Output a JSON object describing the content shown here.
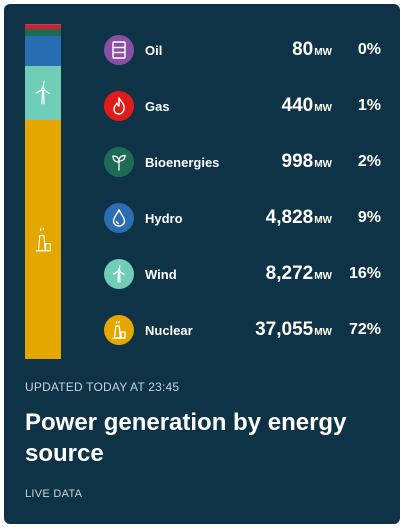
{
  "colors": {
    "card_bg": "#0e3346",
    "oil": "#8a4fa3",
    "gas": "#e01b1b",
    "bioenergies": "#1e6b55",
    "hydro": "#2a6db1",
    "wind": "#6fcdb8",
    "nuclear": "#e3a700"
  },
  "sources": [
    {
      "name": "Oil",
      "value": "80",
      "unit": "MW",
      "pct": "0%",
      "icon": "oil-barrel-icon",
      "color": "#8a4fa3"
    },
    {
      "name": "Gas",
      "value": "440",
      "unit": "MW",
      "pct": "1%",
      "icon": "flame-icon",
      "color": "#e01b1b"
    },
    {
      "name": "Bioenergies",
      "value": "998",
      "unit": "MW",
      "pct": "2%",
      "icon": "leaf-sprout-icon",
      "color": "#1e6b55"
    },
    {
      "name": "Hydro",
      "value": "4,828",
      "unit": "MW",
      "pct": "9%",
      "icon": "water-drop-icon",
      "color": "#2a6db1"
    },
    {
      "name": "Wind",
      "value": "8,272",
      "unit": "MW",
      "pct": "16%",
      "icon": "wind-turbine-icon",
      "color": "#6fcdb8"
    },
    {
      "name": "Nuclear",
      "value": "37,055",
      "unit": "MW",
      "pct": "72%",
      "icon": "nuclear-plant-icon",
      "color": "#e3a700"
    }
  ],
  "updated": "UPDATED TODAY AT 23:45",
  "title": "Power generation by energy source",
  "live": "LIVE DATA"
}
